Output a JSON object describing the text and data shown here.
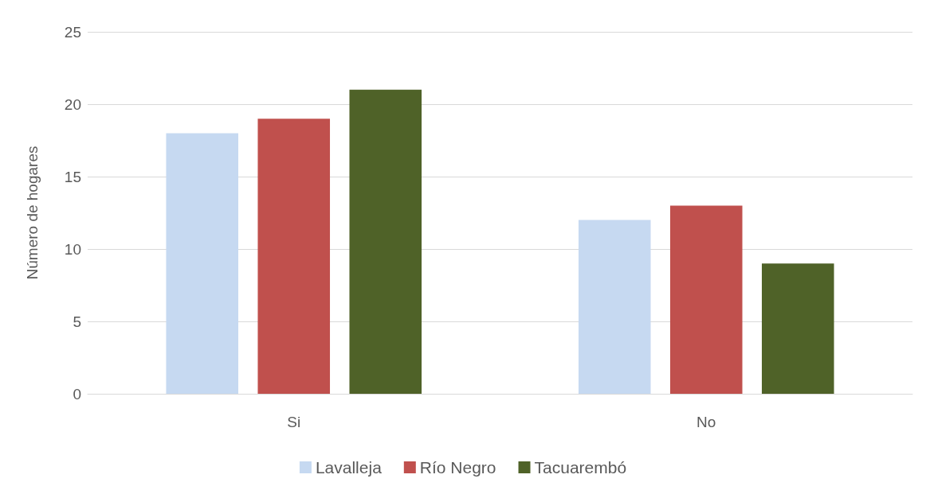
{
  "chart_data": {
    "type": "bar",
    "ylabel": "Número de hogares",
    "categories": [
      "Si",
      "No"
    ],
    "series": [
      {
        "name": "Lavalleja",
        "color": "#c6d9f1",
        "values": [
          18,
          12
        ]
      },
      {
        "name": "Río Negro",
        "color": "#c0504d",
        "values": [
          19,
          13
        ]
      },
      {
        "name": "Tacuarembó",
        "color": "#4f6228",
        "values": [
          21,
          9
        ]
      }
    ],
    "ylim": [
      0,
      25
    ],
    "yticks": [
      0,
      5,
      10,
      15,
      20,
      25
    ],
    "grid": "y",
    "legend": "bottom"
  }
}
